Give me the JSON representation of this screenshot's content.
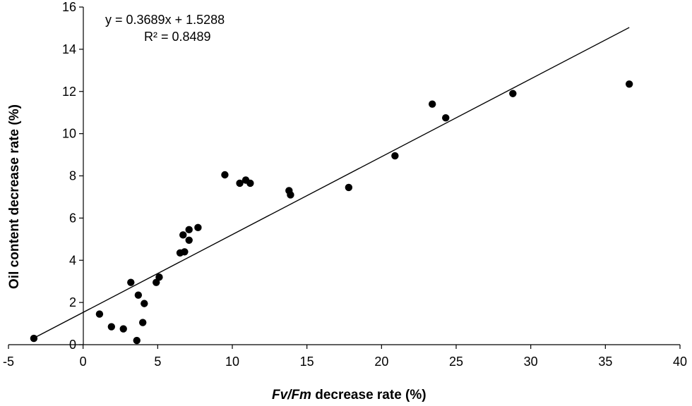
{
  "chart_data": {
    "type": "scatter",
    "title": "",
    "xlabel_italic": "Fv/Fm",
    "xlabel_rest": " decrease rate (%)",
    "ylabel": "Oil content decrease rate (%)",
    "xlim": [
      -5,
      40
    ],
    "ylim": [
      0,
      16
    ],
    "x_ticks": [
      -5,
      0,
      5,
      10,
      15,
      20,
      25,
      30,
      35,
      40
    ],
    "y_ticks": [
      0,
      2,
      4,
      6,
      8,
      10,
      12,
      14,
      16
    ],
    "grid": false,
    "points": [
      {
        "x": -3.3,
        "y": 0.3
      },
      {
        "x": 1.1,
        "y": 1.45
      },
      {
        "x": 1.9,
        "y": 0.85
      },
      {
        "x": 2.7,
        "y": 0.75
      },
      {
        "x": 3.2,
        "y": 2.95
      },
      {
        "x": 3.6,
        "y": 0.2
      },
      {
        "x": 3.7,
        "y": 2.35
      },
      {
        "x": 4.0,
        "y": 1.05
      },
      {
        "x": 4.1,
        "y": 1.95
      },
      {
        "x": 4.9,
        "y": 2.95
      },
      {
        "x": 5.1,
        "y": 3.2
      },
      {
        "x": 6.5,
        "y": 4.35
      },
      {
        "x": 6.7,
        "y": 5.2
      },
      {
        "x": 6.8,
        "y": 4.4
      },
      {
        "x": 7.1,
        "y": 4.95
      },
      {
        "x": 7.1,
        "y": 5.45
      },
      {
        "x": 7.7,
        "y": 5.55
      },
      {
        "x": 9.5,
        "y": 8.05
      },
      {
        "x": 10.5,
        "y": 7.65
      },
      {
        "x": 10.9,
        "y": 7.8
      },
      {
        "x": 11.2,
        "y": 7.65
      },
      {
        "x": 13.8,
        "y": 7.3
      },
      {
        "x": 13.9,
        "y": 7.1
      },
      {
        "x": 17.8,
        "y": 7.45
      },
      {
        "x": 20.9,
        "y": 8.95
      },
      {
        "x": 23.4,
        "y": 11.4
      },
      {
        "x": 24.3,
        "y": 10.75
      },
      {
        "x": 28.8,
        "y": 11.9
      },
      {
        "x": 36.6,
        "y": 12.35
      }
    ],
    "trendline": {
      "slope": 0.3689,
      "intercept": 1.5288,
      "x_range": [
        -3.3,
        36.6
      ]
    },
    "annotations": {
      "equation": "y = 0.3689x + 1.5288",
      "r_squared": "R² = 0.8489"
    }
  }
}
